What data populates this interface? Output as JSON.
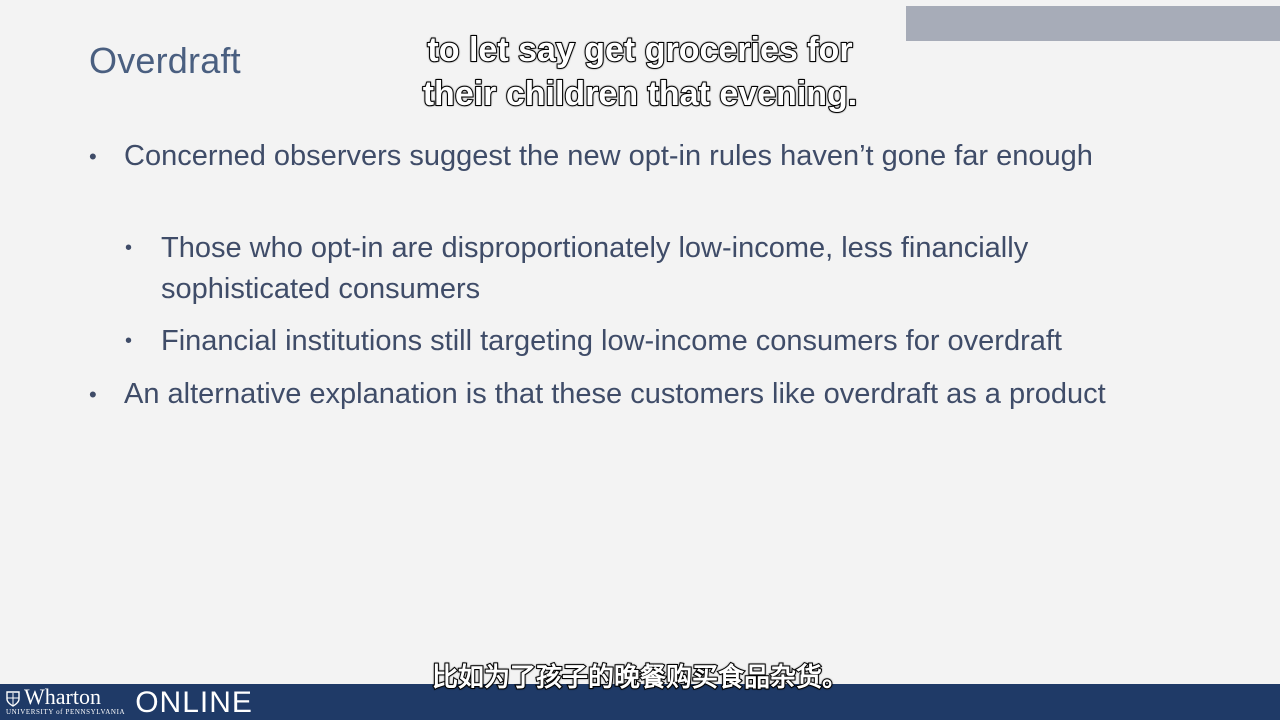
{
  "slide": {
    "title": "Overdraft",
    "bullets": [
      {
        "level": 1,
        "text": "Concerned observers suggest the new opt-in rules haven’t gone far enough"
      },
      {
        "level": 2,
        "text": "Those who opt-in are disproportionately low-income, less financially sophisticated consumers"
      },
      {
        "level": 2,
        "text": "Financial institutions still targeting low-income consumers for overdraft"
      },
      {
        "level": 1,
        "text": "An alternative explanation is that these customers like overdraft as a product"
      }
    ],
    "bullet_symbol": "•"
  },
  "captions": {
    "english_line1": "to let say get groceries for",
    "english_line2": "their children that evening.",
    "chinese": "比如为了孩子的晚餐购买食品杂货。"
  },
  "footer": {
    "logo_name": "Wharton",
    "logo_subtitle": "UNIVERSITY of PENNSYLVANIA",
    "logo_online": "ONLINE"
  },
  "colors": {
    "background": "#f3f3f3",
    "title": "#4a5f80",
    "body_text": "#3f4c68",
    "footer_bar": "#1f3a67",
    "top_band": "#a7acb8"
  }
}
